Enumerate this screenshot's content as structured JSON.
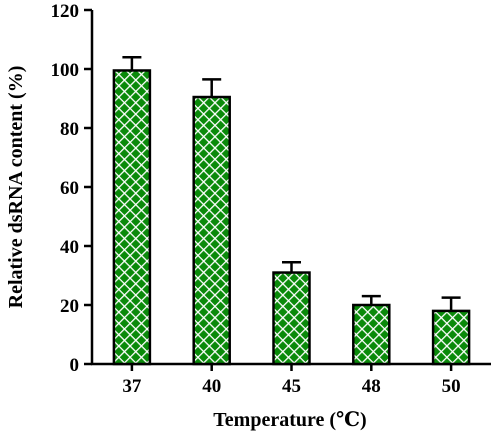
{
  "chart_data": {
    "type": "bar",
    "categories": [
      "37",
      "40",
      "45",
      "48",
      "50"
    ],
    "values": [
      99.5,
      90.5,
      31.0,
      20.0,
      18.0
    ],
    "errors": [
      4.5,
      6.0,
      3.5,
      3.0,
      4.5
    ],
    "xlabel": "Temperature (℃)",
    "ylabel": "Relative dsRNA content (%)",
    "ylim": [
      0,
      120
    ],
    "yticks": [
      0,
      20,
      40,
      60,
      80,
      100,
      120
    ],
    "grid": false,
    "colors": {
      "bar_fill": "#0a8a0a",
      "bar_pattern": "#ffffff",
      "edge": "#000000"
    }
  }
}
